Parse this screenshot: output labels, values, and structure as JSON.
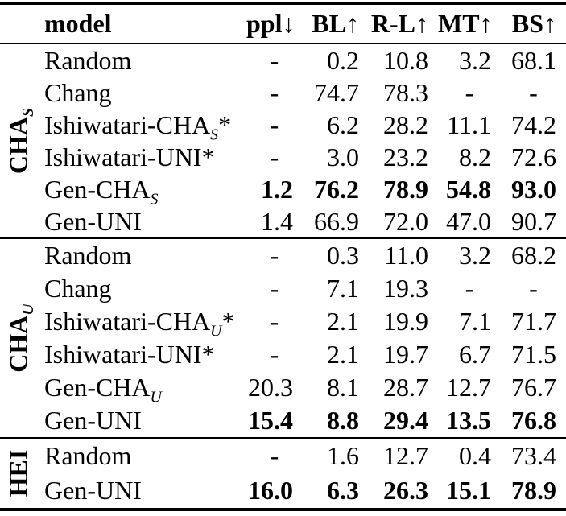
{
  "colors": {
    "background": "#ffffff",
    "text": "#000000",
    "rule": "#000000"
  },
  "table": {
    "columns": [
      {
        "key": "model",
        "label": "model",
        "arrow": ""
      },
      {
        "key": "ppl",
        "label": "ppl",
        "arrow": "↓"
      },
      {
        "key": "BL",
        "label": "BL",
        "arrow": "↑"
      },
      {
        "key": "R-L",
        "label": "R-L",
        "arrow": "↑"
      },
      {
        "key": "MT",
        "label": "MT",
        "arrow": "↑"
      },
      {
        "key": "BS",
        "label": "BS",
        "arrow": "↑"
      }
    ],
    "groups": [
      {
        "label": {
          "text": "CHA",
          "sub": "S"
        },
        "rows": [
          {
            "model": {
              "text": "Random"
            },
            "values": [
              "-",
              "0.2",
              "10.8",
              "3.2",
              "68.1"
            ],
            "bold": false
          },
          {
            "model": {
              "text": "Chang"
            },
            "values": [
              "-",
              "74.7",
              "78.3",
              "-",
              "-"
            ],
            "bold": false
          },
          {
            "model": {
              "text": "Ishiwatari-CHA",
              "sub": "S",
              "suffix": "*"
            },
            "values": [
              "-",
              "6.2",
              "28.2",
              "11.1",
              "74.2"
            ],
            "bold": false
          },
          {
            "model": {
              "text": "Ishiwatari-UNI",
              "suffix": "*"
            },
            "values": [
              "-",
              "3.0",
              "23.2",
              "8.2",
              "72.6"
            ],
            "bold": false
          },
          {
            "model": {
              "text": "Gen-CHA",
              "sub": "S"
            },
            "values": [
              "1.2",
              "76.2",
              "78.9",
              "54.8",
              "93.0"
            ],
            "bold": true
          },
          {
            "model": {
              "text": "Gen-UNI"
            },
            "values": [
              "1.4",
              "66.9",
              "72.0",
              "47.0",
              "90.7"
            ],
            "bold": false
          }
        ]
      },
      {
        "label": {
          "text": "CHA",
          "sub": "U"
        },
        "rows": [
          {
            "model": {
              "text": "Random"
            },
            "values": [
              "-",
              "0.3",
              "11.0",
              "3.2",
              "68.2"
            ],
            "bold": false
          },
          {
            "model": {
              "text": "Chang"
            },
            "values": [
              "-",
              "7.1",
              "19.3",
              "-",
              "-"
            ],
            "bold": false
          },
          {
            "model": {
              "text": "Ishiwatari-CHA",
              "sub": "U",
              "suffix": "*"
            },
            "values": [
              "-",
              "2.1",
              "19.9",
              "7.1",
              "71.7"
            ],
            "bold": false
          },
          {
            "model": {
              "text": "Ishiwatari-UNI",
              "suffix": "*"
            },
            "values": [
              "-",
              "2.1",
              "19.7",
              "6.7",
              "71.5"
            ],
            "bold": false
          },
          {
            "model": {
              "text": "Gen-CHA",
              "sub": "U"
            },
            "values": [
              "20.3",
              "8.1",
              "28.7",
              "12.7",
              "76.7"
            ],
            "bold": false
          },
          {
            "model": {
              "text": "Gen-UNI"
            },
            "values": [
              "15.4",
              "8.8",
              "29.4",
              "13.5",
              "76.8"
            ],
            "bold": true
          }
        ]
      },
      {
        "label": {
          "text": "HEI"
        },
        "rows": [
          {
            "model": {
              "text": "Random"
            },
            "values": [
              "-",
              "1.6",
              "12.7",
              "0.4",
              "73.4"
            ],
            "bold": false
          },
          {
            "model": {
              "text": "Gen-UNI"
            },
            "values": [
              "16.0",
              "6.3",
              "26.3",
              "15.1",
              "78.9"
            ],
            "bold": true
          }
        ]
      }
    ]
  }
}
